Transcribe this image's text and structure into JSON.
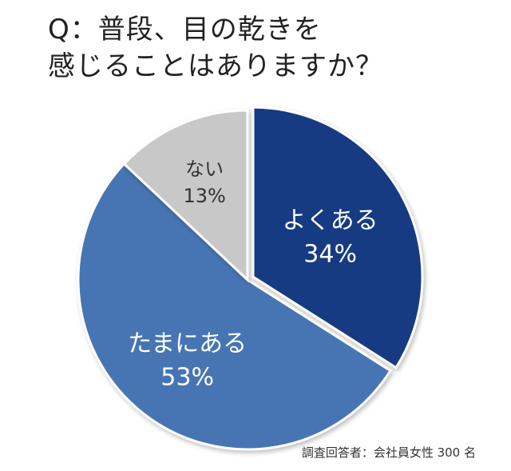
{
  "question": {
    "line1": "Q：普段、目の乾きを",
    "line2": "感じることはありますか？"
  },
  "chart_data": {
    "type": "pie",
    "start_angle_deg": 0,
    "direction": "clockwise",
    "slices": [
      {
        "label": "よくある",
        "value": 34,
        "value_label": "34%",
        "color": "#143a82",
        "text_color": "#ffffff"
      },
      {
        "label": "たまにある",
        "value": 53,
        "value_label": "53%",
        "color": "#4775b4",
        "text_color": "#ffffff"
      },
      {
        "label": "ない",
        "value": 13,
        "value_label": "13%",
        "color": "#c8c8c8",
        "text_color": "#333333"
      }
    ],
    "legend": "none",
    "labels_inside_slices": true,
    "exploded_slice": "よくある"
  },
  "note": "調査回答者：会社員女性 300 名"
}
